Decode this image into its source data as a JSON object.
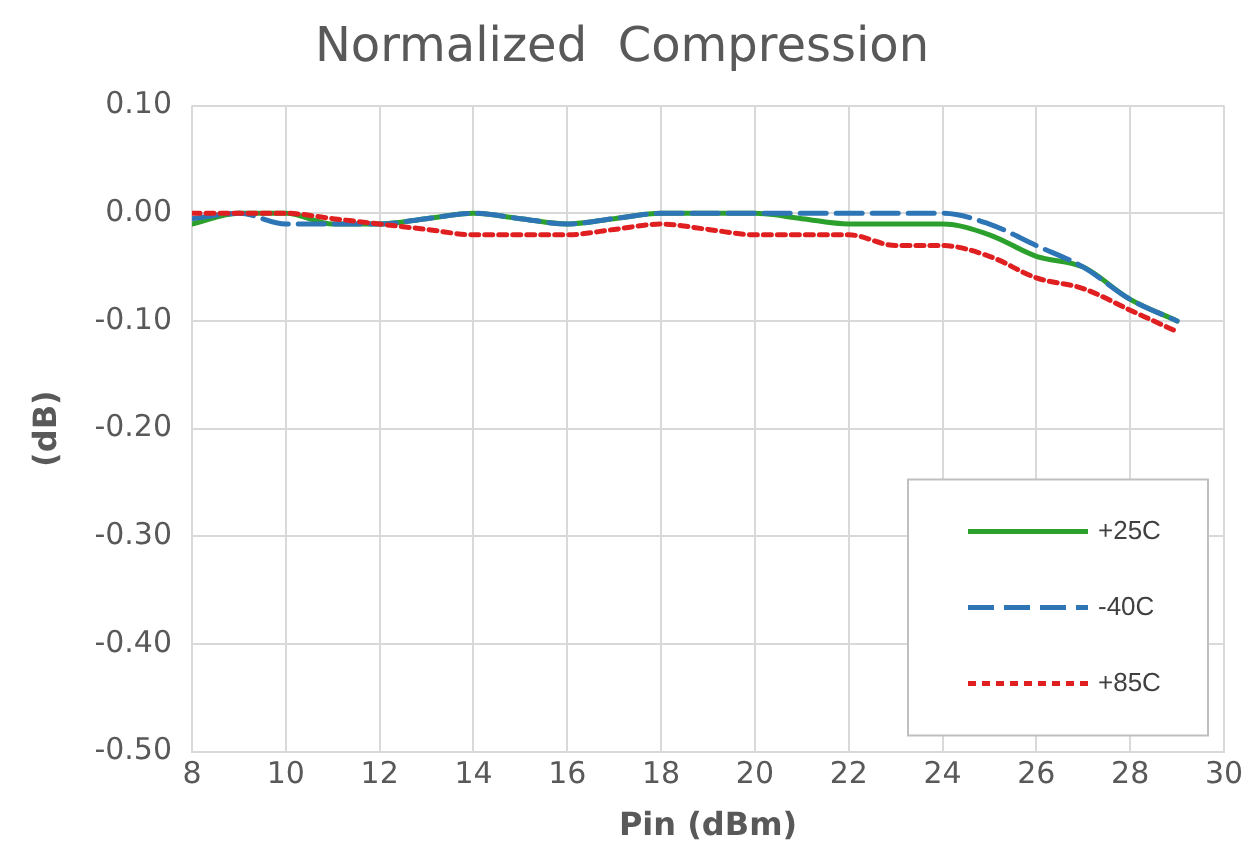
{
  "chart_data": {
    "type": "line",
    "title": "Normalized  Compression",
    "xlabel": "Pin (dBm)",
    "ylabel": "(dB)",
    "x": [
      8,
      9,
      10,
      11,
      12,
      13,
      14,
      15,
      16,
      17,
      18,
      19,
      20,
      21,
      22,
      23,
      24,
      25,
      26,
      27,
      28,
      29
    ],
    "series": [
      {
        "name": "+25C",
        "color": "#2ca02c",
        "line_style": "solid",
        "values": [
          -0.01,
          0,
          0,
          -0.01,
          -0.01,
          -0.005,
          0,
          -0.005,
          -0.01,
          -0.005,
          0,
          0,
          0,
          -0.005,
          -0.01,
          -0.01,
          -0.01,
          -0.02,
          -0.04,
          -0.05,
          -0.08,
          -0.1
        ]
      },
      {
        "name": "-40C",
        "color": "#2e75b6",
        "line_style": "dashed",
        "values": [
          -0.005,
          0,
          -0.01,
          -0.01,
          -0.01,
          -0.005,
          0,
          -0.005,
          -0.01,
          -0.005,
          0,
          0,
          0,
          0,
          0,
          0,
          0,
          -0.01,
          -0.03,
          -0.05,
          -0.08,
          -0.1
        ]
      },
      {
        "name": "+85C",
        "color": "#e02020",
        "line_style": "dotted",
        "values": [
          0,
          0,
          0,
          -0.005,
          -0.01,
          -0.015,
          -0.02,
          -0.02,
          -0.02,
          -0.015,
          -0.01,
          -0.015,
          -0.02,
          -0.02,
          -0.02,
          -0.03,
          -0.03,
          -0.04,
          -0.06,
          -0.07,
          -0.09,
          -0.11
        ]
      }
    ],
    "xlim": [
      8,
      30
    ],
    "xticks": [
      8,
      10,
      12,
      14,
      16,
      18,
      20,
      22,
      24,
      26,
      28,
      30
    ],
    "ylim": [
      -0.5,
      0.1
    ],
    "yticks": [
      {
        "value": -0.5,
        "label": "-0.50"
      },
      {
        "value": -0.4,
        "label": "-0.40"
      },
      {
        "value": -0.3,
        "label": "-0.30"
      },
      {
        "value": -0.2,
        "label": "-0.20"
      },
      {
        "value": -0.1,
        "label": "-0.10"
      },
      {
        "value": 0,
        "label": "0.00"
      },
      {
        "value": 0.1,
        "label": "0.10"
      }
    ],
    "grid": true,
    "legend": "bottom right",
    "marker": "none"
  }
}
